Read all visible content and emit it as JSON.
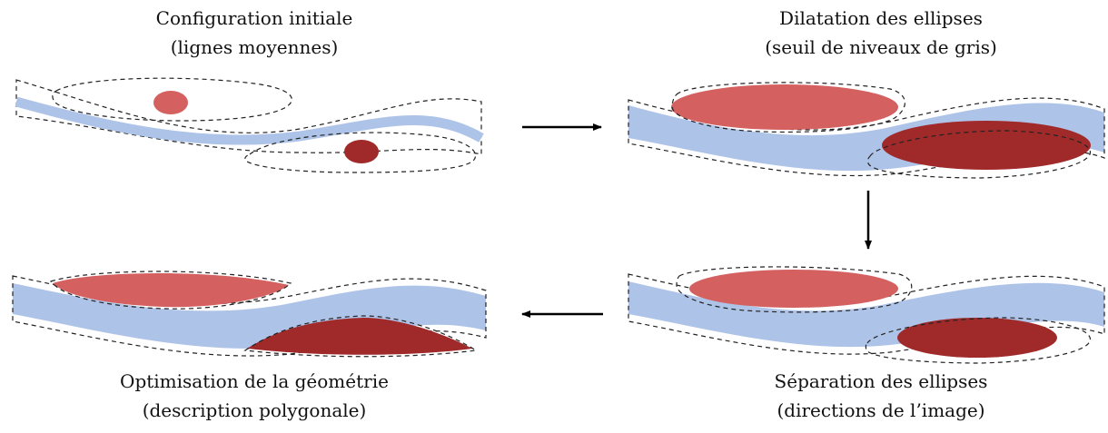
{
  "steps": [
    {
      "title": "Configuration initiale",
      "subtitle": "(lignes moyennes)"
    },
    {
      "title": "Dilatation des ellipses",
      "subtitle": "(seuil de niveaux de gris)"
    },
    {
      "title": "Optimisation de la géométrie",
      "subtitle": "(description polygonale)"
    },
    {
      "title": "Séparation des ellipses",
      "subtitle": "(directions de l’image)"
    }
  ],
  "colors": {
    "band": "#aec3e8",
    "ellipse_light": "#d46060",
    "ellipse_dark": "#a02a2a",
    "outline": "#222222",
    "arrow": "#000000"
  }
}
